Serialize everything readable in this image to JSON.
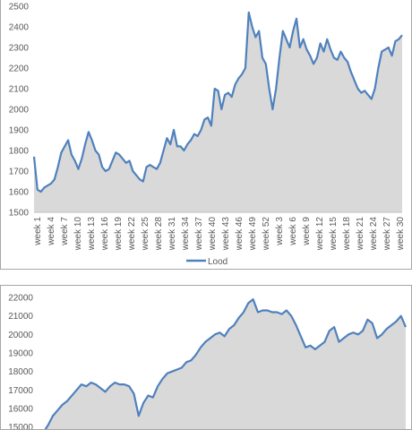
{
  "chart_data": [
    {
      "type": "area",
      "ylim": [
        1500,
        2500
      ],
      "yticks": [
        1500,
        1600,
        1700,
        1800,
        1900,
        2000,
        2100,
        2200,
        2300,
        2400,
        2500
      ],
      "xlabels": [
        "week 1",
        "week 4",
        "week 7",
        "week 10",
        "week 13",
        "week 16",
        "week 19",
        "week 22",
        "week 25",
        "week 28",
        "week 31",
        "week 34",
        "week 37",
        "week 40",
        "week 43",
        "week 46",
        "week 49",
        "week 52",
        "week 3",
        "week 6",
        "week 9",
        "week 12",
        "week 15",
        "week 18",
        "week 21",
        "week 24",
        "week 27",
        "week 30"
      ],
      "series": [
        {
          "name": "Lood",
          "color": "#4f81bd",
          "fill": "#d9d9d9",
          "values": [
            1770,
            1610,
            1600,
            1620,
            1630,
            1640,
            1660,
            1720,
            1790,
            1820,
            1850,
            1780,
            1750,
            1710,
            1760,
            1830,
            1890,
            1850,
            1800,
            1780,
            1720,
            1700,
            1710,
            1750,
            1790,
            1780,
            1760,
            1740,
            1750,
            1700,
            1680,
            1660,
            1650,
            1720,
            1730,
            1720,
            1710,
            1740,
            1800,
            1860,
            1830,
            1900,
            1820,
            1820,
            1800,
            1830,
            1850,
            1880,
            1870,
            1900,
            1950,
            1960,
            1920,
            2100,
            2090,
            2000,
            2070,
            2080,
            2060,
            2120,
            2150,
            2170,
            2200,
            2470,
            2400,
            2350,
            2380,
            2250,
            2220,
            2100,
            2000,
            2100,
            2250,
            2380,
            2340,
            2300,
            2380,
            2440,
            2300,
            2340,
            2290,
            2260,
            2220,
            2250,
            2320,
            2280,
            2340,
            2290,
            2250,
            2240,
            2280,
            2250,
            2230,
            2180,
            2140,
            2100,
            2080,
            2090,
            2070,
            2050,
            2100,
            2200,
            2280,
            2290,
            2300,
            2260,
            2330,
            2340,
            2360
          ]
        }
      ],
      "legend": "bottom"
    },
    {
      "type": "area",
      "ylim": [
        14500,
        22000
      ],
      "yticks": [
        15000,
        16000,
        17000,
        18000,
        19000,
        20000,
        21000,
        22000
      ],
      "series": [
        {
          "name": "",
          "color": "#4f81bd",
          "fill": "#d9d9d9",
          "values": [
            14500,
            14700,
            15100,
            15600,
            15900,
            16200,
            16400,
            16700,
            17000,
            17300,
            17200,
            17400,
            17300,
            17100,
            16900,
            17200,
            17400,
            17300,
            17300,
            17200,
            16800,
            15600,
            16300,
            16700,
            16600,
            17200,
            17600,
            17900,
            18000,
            18100,
            18200,
            18500,
            18600,
            18900,
            19300,
            19600,
            19800,
            20000,
            20100,
            19900,
            20300,
            20500,
            20900,
            21200,
            21700,
            21900,
            21200,
            21300,
            21300,
            21200,
            21200,
            21100,
            21300,
            21000,
            20500,
            19900,
            19300,
            19400,
            19200,
            19400,
            19600,
            20200,
            20400,
            19600,
            19800,
            20000,
            20100,
            20000,
            20200,
            20800,
            20600,
            19800,
            20000,
            20300,
            20500,
            20700,
            21000,
            20400
          ]
        }
      ]
    }
  ],
  "legend_label": "Lood"
}
